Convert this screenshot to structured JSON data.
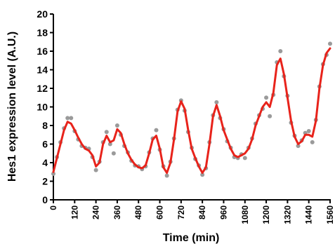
{
  "chart_data": {
    "type": "scatter",
    "xlabel": "Time (min)",
    "ylabel": "Hes1 expression level (A.U.)",
    "xlim": [
      0,
      1560
    ],
    "ylim": [
      0,
      20
    ],
    "xticks": [
      0,
      120,
      240,
      360,
      480,
      600,
      720,
      840,
      960,
      1080,
      1200,
      1320,
      1440,
      1560
    ],
    "yticks": [
      0,
      2,
      4,
      6,
      8,
      10,
      12,
      14,
      16,
      18,
      20
    ],
    "x": [
      0,
      20,
      40,
      60,
      80,
      100,
      120,
      140,
      160,
      180,
      200,
      220,
      240,
      260,
      280,
      300,
      320,
      340,
      360,
      380,
      400,
      420,
      440,
      460,
      480,
      500,
      520,
      540,
      560,
      580,
      600,
      620,
      640,
      660,
      680,
      700,
      720,
      740,
      760,
      780,
      800,
      820,
      840,
      860,
      880,
      900,
      920,
      940,
      960,
      980,
      1000,
      1020,
      1040,
      1060,
      1080,
      1100,
      1120,
      1140,
      1160,
      1180,
      1200,
      1220,
      1240,
      1260,
      1280,
      1300,
      1320,
      1340,
      1360,
      1380,
      1400,
      1420,
      1440,
      1460,
      1480,
      1500,
      1520,
      1540,
      1560
    ],
    "series": [
      {
        "type": "scatter",
        "color": "#9a9a9a",
        "values": [
          2.8,
          4.6,
          6.2,
          7.7,
          8.8,
          8.8,
          7.4,
          6.5,
          5.8,
          5.6,
          5.5,
          4.6,
          3.2,
          4.1,
          6.2,
          7.3,
          6.0,
          5.0,
          8.0,
          7.0,
          5.8,
          5.1,
          4.2,
          3.7,
          3.6,
          3.3,
          3.6,
          5.1,
          6.6,
          7.5,
          5.4,
          3.6,
          2.6,
          4.1,
          6.6,
          9.7,
          10.7,
          9.6,
          7.3,
          5.6,
          4.4,
          3.7,
          2.7,
          3.4,
          6.2,
          9.1,
          10.5,
          8.8,
          7.6,
          6.3,
          5.6,
          4.6,
          4.5,
          4.9,
          4.5,
          5.6,
          6.6,
          8.2,
          9.1,
          9.8,
          11.0,
          9.0,
          11.3,
          14.8,
          16.0,
          13.3,
          11.2,
          8.3,
          6.9,
          5.8,
          6.4,
          7.2,
          7.4,
          6.2,
          8.6,
          12.2,
          14.6,
          15.6,
          16.8
        ]
      },
      {
        "type": "line",
        "color": "#e8231b",
        "values": [
          3.0,
          4.5,
          6.0,
          7.5,
          8.4,
          8.2,
          7.5,
          6.7,
          6.0,
          5.5,
          5.3,
          4.8,
          3.6,
          4.0,
          6.0,
          6.9,
          6.2,
          6.4,
          7.6,
          7.2,
          6.0,
          5.0,
          4.3,
          3.8,
          3.5,
          3.4,
          3.7,
          5.0,
          6.5,
          6.9,
          5.5,
          3.5,
          2.9,
          4.0,
          6.5,
          9.5,
          10.6,
          9.8,
          7.5,
          5.5,
          4.5,
          3.6,
          2.9,
          3.5,
          6.0,
          9.0,
          10.2,
          9.0,
          7.5,
          6.5,
          5.5,
          4.8,
          4.6,
          4.8,
          5.0,
          5.5,
          6.5,
          8.0,
          9.0,
          10.0,
          10.5,
          10.0,
          11.5,
          14.5,
          15.2,
          13.5,
          11.0,
          8.5,
          6.8,
          6.0,
          6.3,
          7.0,
          7.0,
          6.8,
          8.5,
          12.0,
          14.5,
          15.8,
          16.3
        ]
      }
    ]
  }
}
